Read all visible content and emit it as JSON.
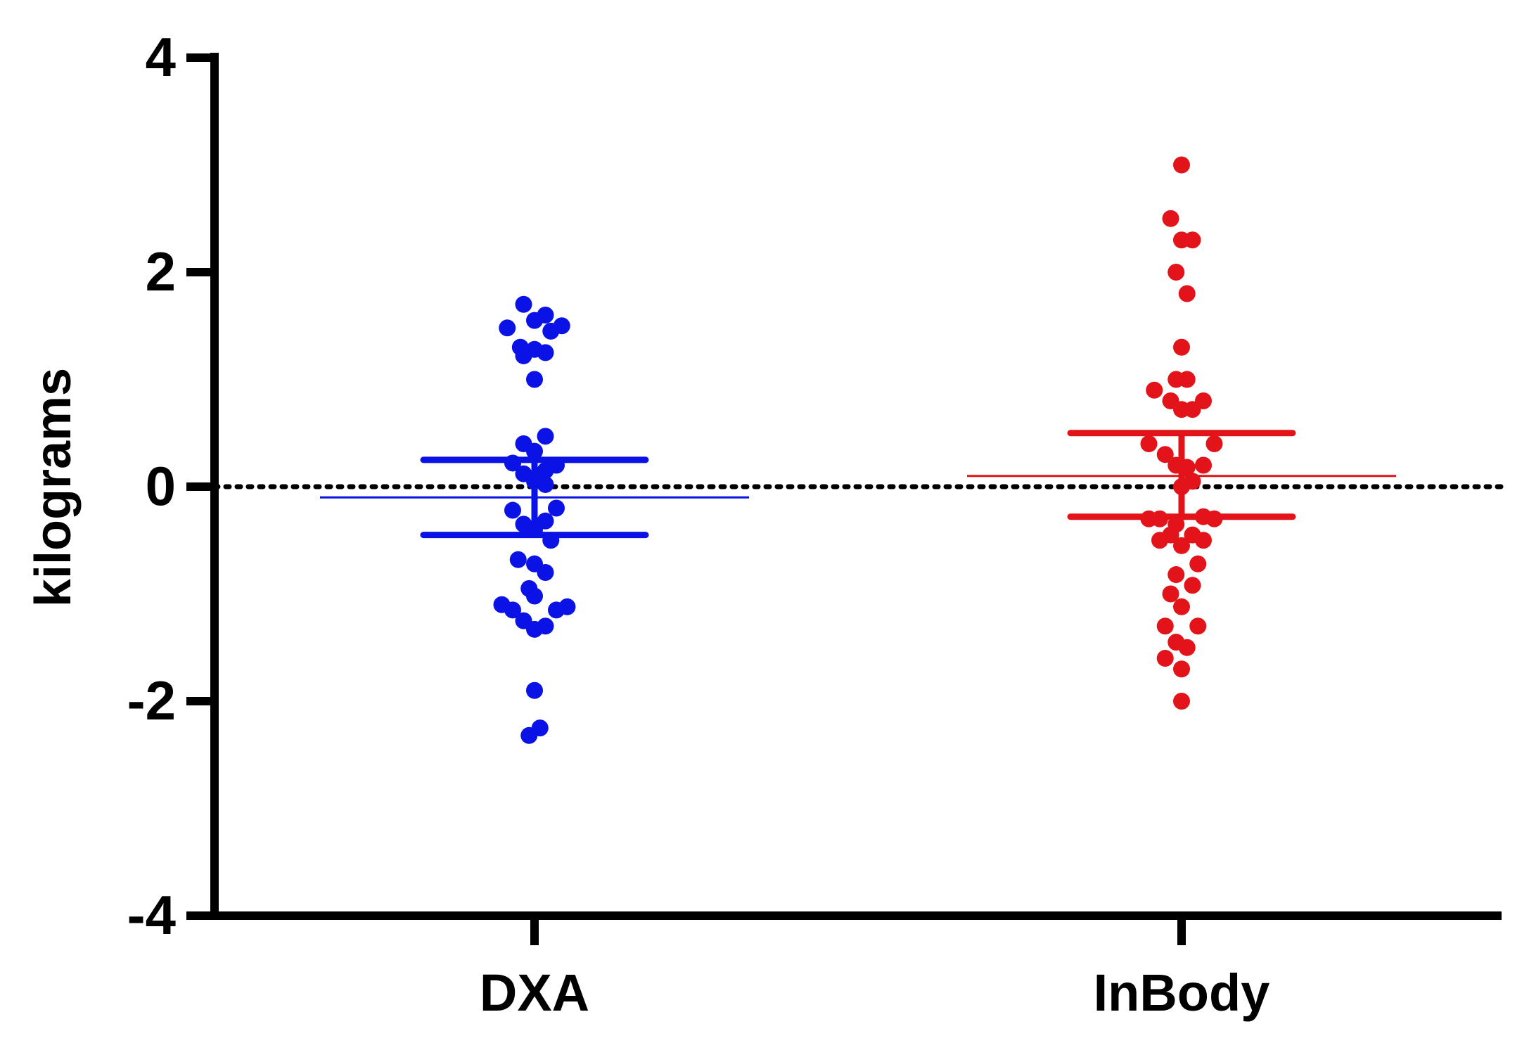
{
  "chart_data": {
    "type": "scatter",
    "subtype": "dot-plot-with-mean-and-ci",
    "title": "",
    "xlabel": "",
    "ylabel": "kilograms",
    "ylim": [
      -4,
      4
    ],
    "yticks": [
      4,
      2,
      0,
      -2,
      -4
    ],
    "ytick_labels": [
      "4",
      "2",
      "0",
      "-2",
      "-4"
    ],
    "reference_line": {
      "y": 0,
      "style": "dotted",
      "color": "#000000"
    },
    "categories": [
      "DXA",
      "InBody"
    ],
    "series": [
      {
        "name": "DXA",
        "color": "#0a12e6",
        "mean": -0.1,
        "ci_upper": 0.25,
        "ci_lower": -0.45,
        "points": [
          {
            "dx": -0.1,
            "y": 1.7
          },
          {
            "dx": 0.1,
            "y": 1.6
          },
          {
            "dx": 0.0,
            "y": 1.55
          },
          {
            "dx": -0.25,
            "y": 1.48
          },
          {
            "dx": 0.25,
            "y": 1.5
          },
          {
            "dx": 0.15,
            "y": 1.45
          },
          {
            "dx": -0.13,
            "y": 1.3
          },
          {
            "dx": -0.1,
            "y": 1.22
          },
          {
            "dx": 0.0,
            "y": 1.28
          },
          {
            "dx": 0.1,
            "y": 1.25
          },
          {
            "dx": 0.0,
            "y": 1.0
          },
          {
            "dx": 0.1,
            "y": 0.47
          },
          {
            "dx": -0.1,
            "y": 0.4
          },
          {
            "dx": 0.0,
            "y": 0.33
          },
          {
            "dx": -0.2,
            "y": 0.22
          },
          {
            "dx": 0.2,
            "y": 0.2
          },
          {
            "dx": -0.1,
            "y": 0.12
          },
          {
            "dx": 0.1,
            "y": 0.15
          },
          {
            "dx": 0.0,
            "y": 0.05
          },
          {
            "dx": 0.1,
            "y": 0.02
          },
          {
            "dx": -0.2,
            "y": -0.22
          },
          {
            "dx": 0.2,
            "y": -0.2
          },
          {
            "dx": -0.1,
            "y": -0.35
          },
          {
            "dx": 0.1,
            "y": -0.32
          },
          {
            "dx": 0.0,
            "y": -0.4
          },
          {
            "dx": 0.15,
            "y": -0.5
          },
          {
            "dx": -0.15,
            "y": -0.68
          },
          {
            "dx": 0.0,
            "y": -0.72
          },
          {
            "dx": 0.1,
            "y": -0.8
          },
          {
            "dx": -0.05,
            "y": -0.95
          },
          {
            "dx": 0.0,
            "y": -1.02
          },
          {
            "dx": -0.3,
            "y": -1.1
          },
          {
            "dx": -0.2,
            "y": -1.15
          },
          {
            "dx": 0.2,
            "y": -1.15
          },
          {
            "dx": 0.3,
            "y": -1.12
          },
          {
            "dx": -0.1,
            "y": -1.25
          },
          {
            "dx": 0.0,
            "y": -1.33
          },
          {
            "dx": 0.1,
            "y": -1.3
          },
          {
            "dx": 0.0,
            "y": -1.9
          },
          {
            "dx": -0.05,
            "y": -2.32
          },
          {
            "dx": 0.05,
            "y": -2.25
          }
        ]
      },
      {
        "name": "InBody",
        "color": "#e3131a",
        "mean": 0.1,
        "ci_upper": 0.5,
        "ci_lower": -0.28,
        "points": [
          {
            "dx": 0.0,
            "y": 3.0
          },
          {
            "dx": -0.1,
            "y": 2.5
          },
          {
            "dx": 0.0,
            "y": 2.3
          },
          {
            "dx": 0.1,
            "y": 2.3
          },
          {
            "dx": -0.05,
            "y": 2.0
          },
          {
            "dx": 0.05,
            "y": 1.8
          },
          {
            "dx": 0.0,
            "y": 1.3
          },
          {
            "dx": -0.05,
            "y": 1.0
          },
          {
            "dx": 0.05,
            "y": 1.0
          },
          {
            "dx": -0.25,
            "y": 0.9
          },
          {
            "dx": -0.1,
            "y": 0.8
          },
          {
            "dx": 0.0,
            "y": 0.72
          },
          {
            "dx": 0.1,
            "y": 0.72
          },
          {
            "dx": 0.2,
            "y": 0.8
          },
          {
            "dx": -0.3,
            "y": 0.4
          },
          {
            "dx": -0.15,
            "y": 0.3
          },
          {
            "dx": 0.3,
            "y": 0.4
          },
          {
            "dx": -0.05,
            "y": 0.2
          },
          {
            "dx": 0.05,
            "y": 0.18
          },
          {
            "dx": 0.2,
            "y": 0.2
          },
          {
            "dx": 0.0,
            "y": 0.0
          },
          {
            "dx": 0.1,
            "y": 0.05
          },
          {
            "dx": -0.3,
            "y": -0.3
          },
          {
            "dx": -0.2,
            "y": -0.3
          },
          {
            "dx": 0.2,
            "y": -0.28
          },
          {
            "dx": 0.3,
            "y": -0.3
          },
          {
            "dx": -0.05,
            "y": -0.35
          },
          {
            "dx": -0.1,
            "y": -0.45
          },
          {
            "dx": 0.1,
            "y": -0.45
          },
          {
            "dx": -0.2,
            "y": -0.5
          },
          {
            "dx": 0.0,
            "y": -0.55
          },
          {
            "dx": 0.2,
            "y": -0.5
          },
          {
            "dx": 0.15,
            "y": -0.72
          },
          {
            "dx": -0.05,
            "y": -0.82
          },
          {
            "dx": -0.1,
            "y": -1.0
          },
          {
            "dx": 0.1,
            "y": -0.92
          },
          {
            "dx": 0.0,
            "y": -1.12
          },
          {
            "dx": -0.15,
            "y": -1.3
          },
          {
            "dx": 0.15,
            "y": -1.3
          },
          {
            "dx": -0.05,
            "y": -1.45
          },
          {
            "dx": 0.05,
            "y": -1.5
          },
          {
            "dx": -0.15,
            "y": -1.6
          },
          {
            "dx": 0.0,
            "y": -1.7
          },
          {
            "dx": 0.0,
            "y": -2.0
          }
        ]
      }
    ]
  }
}
